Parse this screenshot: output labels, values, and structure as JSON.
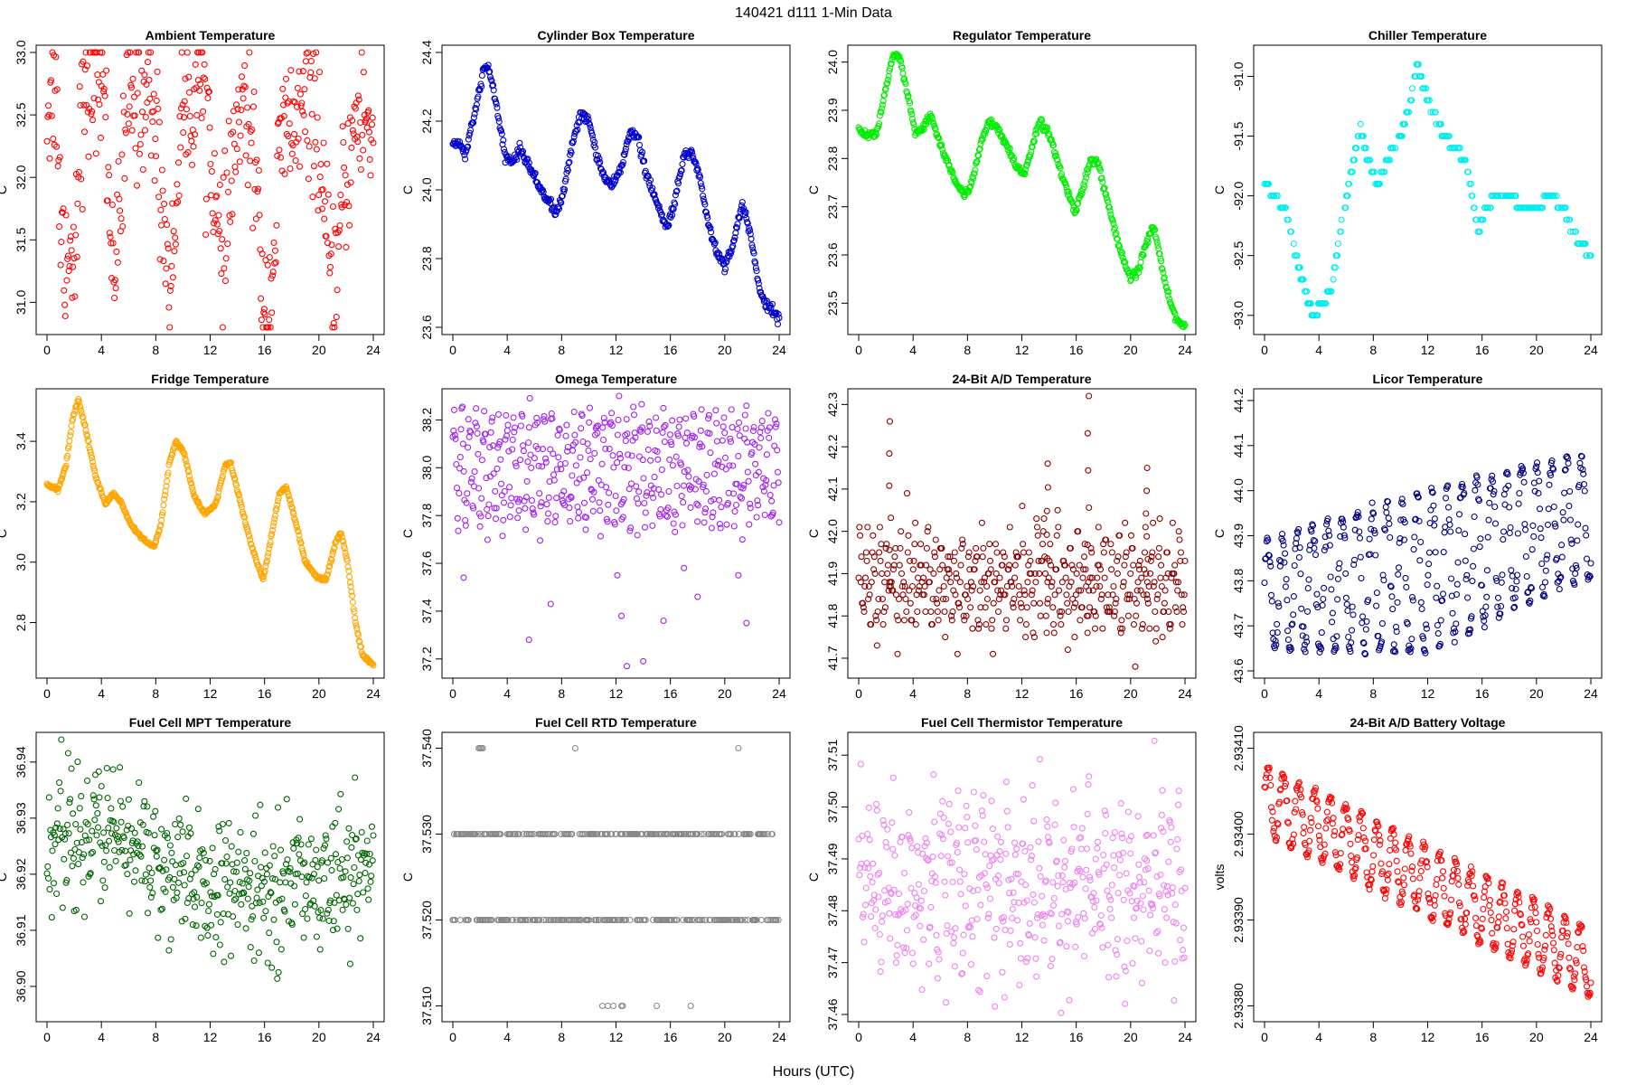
{
  "figure": {
    "title": "140421   d111   1-Min Data",
    "xlabel": "Hours (UTC)"
  },
  "chart_data": [
    {
      "type": "scatter",
      "title": "Ambient Temperature",
      "ylabel": "C",
      "color": "#ff0000",
      "ylim": [
        30.8,
        33.0
      ],
      "yticks": [
        "31.0",
        "31.5",
        "32.0",
        "32.5",
        "33.0"
      ],
      "xlim": [
        0,
        24
      ],
      "xticks": [
        "0",
        "4",
        "8",
        "12",
        "16",
        "20",
        "24"
      ],
      "trace": [
        [
          0.0,
          32.6
        ],
        [
          0.7,
          32.7
        ],
        [
          1.0,
          31.6
        ],
        [
          1.4,
          31.4
        ],
        [
          2.0,
          31.4
        ],
        [
          2.4,
          32.4
        ],
        [
          3.0,
          32.6
        ],
        [
          3.5,
          32.9
        ],
        [
          4.2,
          32.7
        ],
        [
          4.8,
          31.4
        ],
        [
          5.3,
          31.5
        ],
        [
          5.9,
          32.6
        ],
        [
          6.8,
          32.6
        ],
        [
          7.6,
          32.7
        ],
        [
          8.2,
          32.2
        ],
        [
          8.7,
          31.5
        ],
        [
          9.2,
          31.1
        ],
        [
          9.8,
          32.5
        ],
        [
          10.6,
          32.6
        ],
        [
          11.3,
          32.8
        ],
        [
          12.0,
          32.4
        ],
        [
          12.6,
          31.4
        ],
        [
          13.0,
          31.3
        ],
        [
          13.8,
          32.3
        ],
        [
          14.5,
          32.5
        ],
        [
          15.2,
          32.3
        ],
        [
          15.7,
          31.3
        ],
        [
          16.2,
          30.9
        ],
        [
          16.7,
          31.4
        ],
        [
          17.2,
          32.3
        ],
        [
          18.0,
          32.4
        ],
        [
          19.0,
          32.5
        ],
        [
          19.8,
          32.6
        ],
        [
          20.5,
          31.5
        ],
        [
          21.0,
          31.0
        ],
        [
          21.4,
          31.4
        ],
        [
          22.0,
          32.0
        ],
        [
          22.6,
          32.4
        ],
        [
          23.2,
          32.5
        ],
        [
          24.0,
          32.3
        ]
      ],
      "noise": 0.3,
      "density": 1.0
    },
    {
      "type": "scatter",
      "title": "Cylinder Box Temperature",
      "ylabel": "C",
      "color": "#0000cd",
      "ylim": [
        23.6,
        24.4
      ],
      "yticks": [
        "23.6",
        "23.8",
        "24.0",
        "24.2",
        "24.4"
      ],
      "xlim": [
        0,
        24
      ],
      "xticks": [
        "0",
        "4",
        "8",
        "12",
        "16",
        "20",
        "24"
      ],
      "trace": [
        [
          0.0,
          24.14
        ],
        [
          0.6,
          24.13
        ],
        [
          0.9,
          24.1
        ],
        [
          1.5,
          24.2
        ],
        [
          2.2,
          24.34
        ],
        [
          2.6,
          24.36
        ],
        [
          3.2,
          24.25
        ],
        [
          3.8,
          24.1
        ],
        [
          4.4,
          24.08
        ],
        [
          4.9,
          24.12
        ],
        [
          5.5,
          24.08
        ],
        [
          6.2,
          24.02
        ],
        [
          7.0,
          23.97
        ],
        [
          7.6,
          23.93
        ],
        [
          8.2,
          24.0
        ],
        [
          8.8,
          24.14
        ],
        [
          9.4,
          24.22
        ],
        [
          10.0,
          24.2
        ],
        [
          10.6,
          24.1
        ],
        [
          11.2,
          24.03
        ],
        [
          11.8,
          24.01
        ],
        [
          12.5,
          24.08
        ],
        [
          13.1,
          24.18
        ],
        [
          13.6,
          24.15
        ],
        [
          14.2,
          24.05
        ],
        [
          15.0,
          23.96
        ],
        [
          15.7,
          23.89
        ],
        [
          16.3,
          23.96
        ],
        [
          17.0,
          24.1
        ],
        [
          17.6,
          24.11
        ],
        [
          18.2,
          24.03
        ],
        [
          18.8,
          23.9
        ],
        [
          19.4,
          23.82
        ],
        [
          20.0,
          23.78
        ],
        [
          20.6,
          23.84
        ],
        [
          21.3,
          23.96
        ],
        [
          21.9,
          23.87
        ],
        [
          22.5,
          23.72
        ],
        [
          23.1,
          23.66
        ],
        [
          23.6,
          23.65
        ],
        [
          24.0,
          23.62
        ]
      ],
      "noise": 0.007,
      "density": 1.0
    },
    {
      "type": "scatter",
      "title": "Regulator Temperature",
      "ylabel": "C",
      "color": "#00ee00",
      "ylim": [
        23.45,
        24.02
      ],
      "yticks": [
        "23.5",
        "23.6",
        "23.7",
        "23.8",
        "23.9",
        "24.0"
      ],
      "xlim": [
        0,
        24
      ],
      "xticks": [
        "0",
        "4",
        "8",
        "12",
        "16",
        "20",
        "24"
      ],
      "trace": [
        [
          0.0,
          23.86
        ],
        [
          0.5,
          23.85
        ],
        [
          1.3,
          23.85
        ],
        [
          2.1,
          23.96
        ],
        [
          2.5,
          24.01
        ],
        [
          3.0,
          24.01
        ],
        [
          3.6,
          23.93
        ],
        [
          4.2,
          23.85
        ],
        [
          4.7,
          23.86
        ],
        [
          5.3,
          23.89
        ],
        [
          6.0,
          23.83
        ],
        [
          7.0,
          23.76
        ],
        [
          7.8,
          23.72
        ],
        [
          8.4,
          23.76
        ],
        [
          9.0,
          23.83
        ],
        [
          9.6,
          23.88
        ],
        [
          10.2,
          23.86
        ],
        [
          11.0,
          23.82
        ],
        [
          11.6,
          23.78
        ],
        [
          12.2,
          23.77
        ],
        [
          12.8,
          23.83
        ],
        [
          13.3,
          23.88
        ],
        [
          14.0,
          23.85
        ],
        [
          15.0,
          23.76
        ],
        [
          15.9,
          23.69
        ],
        [
          16.5,
          23.74
        ],
        [
          17.1,
          23.8
        ],
        [
          17.6,
          23.79
        ],
        [
          18.4,
          23.7
        ],
        [
          19.2,
          23.61
        ],
        [
          20.0,
          23.55
        ],
        [
          20.6,
          23.57
        ],
        [
          21.2,
          23.63
        ],
        [
          21.7,
          23.66
        ],
        [
          22.2,
          23.59
        ],
        [
          23.0,
          23.49
        ],
        [
          23.6,
          23.46
        ],
        [
          24.0,
          23.45
        ]
      ],
      "noise": 0.004,
      "density": 1.0
    },
    {
      "type": "scatter",
      "title": "Chiller Temperature",
      "ylabel": "C",
      "color": "#00eeee",
      "ylim": [
        -93.1,
        -90.8
      ],
      "yticks": [
        "-93.0",
        "-92.5",
        "-92.0",
        "-91.5",
        "-91.0"
      ],
      "xlim": [
        0,
        24
      ],
      "xticks": [
        "0",
        "4",
        "8",
        "12",
        "16",
        "20",
        "24"
      ],
      "trace": [
        [
          0.0,
          -91.9
        ],
        [
          0.8,
          -92.0
        ],
        [
          1.5,
          -92.1
        ],
        [
          2.3,
          -92.5
        ],
        [
          3.0,
          -92.8
        ],
        [
          3.6,
          -93.0
        ],
        [
          4.3,
          -92.9
        ],
        [
          4.9,
          -92.8
        ],
        [
          5.7,
          -92.2
        ],
        [
          6.4,
          -91.8
        ],
        [
          7.0,
          -91.4
        ],
        [
          7.6,
          -91.7
        ],
        [
          8.3,
          -91.9
        ],
        [
          9.0,
          -91.7
        ],
        [
          10.0,
          -91.5
        ],
        [
          10.8,
          -91.2
        ],
        [
          11.2,
          -90.9
        ],
        [
          11.7,
          -91.1
        ],
        [
          12.4,
          -91.3
        ],
        [
          13.2,
          -91.5
        ],
        [
          14.0,
          -91.6
        ],
        [
          14.8,
          -91.7
        ],
        [
          15.3,
          -92.0
        ],
        [
          15.7,
          -92.3
        ],
        [
          16.3,
          -92.1
        ],
        [
          17.0,
          -92.0
        ],
        [
          18.0,
          -92.0
        ],
        [
          19.0,
          -92.1
        ],
        [
          20.0,
          -92.1
        ],
        [
          21.0,
          -92.0
        ],
        [
          22.0,
          -92.1
        ],
        [
          22.6,
          -92.3
        ],
        [
          23.2,
          -92.4
        ],
        [
          24.0,
          -92.5
        ]
      ],
      "noise": 0.0,
      "quantum": 0.1,
      "density": 0.7
    },
    {
      "type": "scatter",
      "title": "Fridge Temperature",
      "ylabel": "C",
      "color": "#ffa500",
      "ylim": [
        2.64,
        3.55
      ],
      "yticks": [
        "2.8",
        "3.0",
        "3.2",
        "3.4"
      ],
      "xlim": [
        0,
        24
      ],
      "xticks": [
        "0",
        "4",
        "8",
        "12",
        "16",
        "20",
        "24"
      ],
      "trace": [
        [
          0.0,
          3.26
        ],
        [
          0.8,
          3.24
        ],
        [
          1.4,
          3.32
        ],
        [
          1.9,
          3.48
        ],
        [
          2.3,
          3.54
        ],
        [
          2.8,
          3.45
        ],
        [
          3.6,
          3.28
        ],
        [
          4.3,
          3.19
        ],
        [
          4.9,
          3.23
        ],
        [
          5.4,
          3.2
        ],
        [
          6.2,
          3.12
        ],
        [
          7.2,
          3.07
        ],
        [
          7.9,
          3.05
        ],
        [
          8.4,
          3.13
        ],
        [
          9.0,
          3.33
        ],
        [
          9.5,
          3.4
        ],
        [
          10.1,
          3.36
        ],
        [
          10.8,
          3.22
        ],
        [
          11.6,
          3.16
        ],
        [
          12.4,
          3.19
        ],
        [
          13.1,
          3.32
        ],
        [
          13.5,
          3.33
        ],
        [
          14.1,
          3.22
        ],
        [
          15.0,
          3.06
        ],
        [
          15.9,
          2.94
        ],
        [
          16.4,
          3.06
        ],
        [
          17.1,
          3.23
        ],
        [
          17.6,
          3.25
        ],
        [
          18.3,
          3.13
        ],
        [
          19.0,
          3.0
        ],
        [
          19.8,
          2.95
        ],
        [
          20.5,
          2.94
        ],
        [
          21.2,
          3.06
        ],
        [
          21.6,
          3.1
        ],
        [
          22.1,
          3.0
        ],
        [
          22.7,
          2.8
        ],
        [
          23.2,
          2.69
        ],
        [
          24.0,
          2.66
        ]
      ],
      "noise": 0.003,
      "density": 1.0
    },
    {
      "type": "scatter",
      "title": "Omega Temperature",
      "ylabel": "C",
      "color": "#a020f0",
      "ylim": [
        37.15,
        38.3
      ],
      "yticks": [
        "37.2",
        "37.4",
        "37.6",
        "37.8",
        "38.0",
        "38.2"
      ],
      "xlim": [
        0,
        24
      ],
      "xticks": [
        "0",
        "4",
        "8",
        "12",
        "16",
        "20",
        "24"
      ],
      "center": 38.0,
      "amplitude": 0.2,
      "period": 0.55,
      "noise": 0.05,
      "density": 1.0,
      "outliers": [
        [
          0.8,
          37.54
        ],
        [
          5.6,
          37.28
        ],
        [
          7.2,
          37.43
        ],
        [
          12.1,
          37.55
        ],
        [
          12.4,
          37.38
        ],
        [
          12.8,
          37.17
        ],
        [
          14.0,
          37.19
        ],
        [
          15.5,
          37.36
        ],
        [
          17.0,
          37.58
        ],
        [
          18.0,
          37.46
        ],
        [
          21.0,
          37.55
        ],
        [
          21.6,
          37.35
        ]
      ]
    },
    {
      "type": "scatter",
      "title": "24-Bit A/D Temperature",
      "ylabel": "C",
      "color": "#8b0000",
      "ylim": [
        41.67,
        42.32
      ],
      "yticks": [
        "41.7",
        "41.8",
        "41.9",
        "42.0",
        "42.1",
        "42.2",
        "42.3"
      ],
      "xlim": [
        0,
        24
      ],
      "xticks": [
        "0",
        "4",
        "8",
        "12",
        "16",
        "20",
        "24"
      ],
      "center": 41.88,
      "amplitude": 0.08,
      "period": 0.5,
      "noise": 0.04,
      "quantum": 0.01,
      "density": 1.0,
      "spikes": [
        [
          2.3,
          42.26
        ],
        [
          16.9,
          42.32
        ],
        [
          21.2,
          42.15
        ],
        [
          13.9,
          42.16
        ]
      ]
    },
    {
      "type": "scatter",
      "title": "Licor Temperature",
      "ylabel": "C",
      "color": "#000080",
      "ylim": [
        43.6,
        44.21
      ],
      "yticks": [
        "43.6",
        "43.7",
        "43.8",
        "43.9",
        "44.0",
        "44.1",
        "44.2"
      ],
      "xlim": [
        0,
        24
      ],
      "xticks": [
        "0",
        "4",
        "8",
        "12",
        "16",
        "20",
        "24"
      ],
      "center_trend": [
        [
          0,
          43.77
        ],
        [
          12,
          43.82
        ],
        [
          24,
          43.95
        ]
      ],
      "amplitude_trend": [
        [
          0,
          0.12
        ],
        [
          12,
          0.18
        ],
        [
          24,
          0.14
        ]
      ],
      "period": 1.1,
      "noise": 0.005,
      "density": 1.0
    },
    {
      "type": "scatter",
      "title": "Fuel Cell MPT Temperature",
      "ylabel": "C",
      "color": "#006400",
      "ylim": [
        36.895,
        36.944
      ],
      "yticks": [
        "36.90",
        "36.91",
        "36.92",
        "36.93",
        "36.94"
      ],
      "xlim": [
        0,
        24
      ],
      "xticks": [
        "0",
        "4",
        "8",
        "12",
        "16",
        "20",
        "24"
      ],
      "trace": [
        [
          0,
          36.926
        ],
        [
          5,
          36.927
        ],
        [
          8,
          36.923
        ],
        [
          10,
          36.918
        ],
        [
          13,
          36.917
        ],
        [
          16,
          36.917
        ],
        [
          20,
          36.92
        ],
        [
          24,
          36.921
        ]
      ],
      "noise": 0.006,
      "density": 1.0
    },
    {
      "type": "scatter",
      "title": "Fuel Cell RTD Temperature",
      "ylabel": "C",
      "color": "#888888",
      "ylim": [
        37.509,
        37.541
      ],
      "yticks": [
        "37.510",
        "37.520",
        "37.530",
        "37.540"
      ],
      "xlim": [
        0,
        24
      ],
      "xticks": [
        "0",
        "4",
        "8",
        "12",
        "16",
        "20",
        "24"
      ],
      "levels": [
        37.52,
        37.53
      ],
      "outliers": [
        [
          1.9,
          37.54
        ],
        [
          2.0,
          37.54
        ],
        [
          2.1,
          37.54
        ],
        [
          2.2,
          37.54
        ],
        [
          9.0,
          37.54
        ],
        [
          21.0,
          37.54
        ],
        [
          11.0,
          37.51
        ],
        [
          11.4,
          37.51
        ],
        [
          11.8,
          37.51
        ],
        [
          12.4,
          37.51
        ],
        [
          12.5,
          37.51
        ],
        [
          15.0,
          37.51
        ],
        [
          17.5,
          37.51
        ]
      ]
    },
    {
      "type": "scatter",
      "title": "Fuel Cell Thermistor Temperature",
      "ylabel": "C",
      "color": "#ee82ee",
      "ylim": [
        37.46,
        37.513
      ],
      "yticks": [
        "37.46",
        "37.47",
        "37.48",
        "37.49",
        "37.50",
        "37.51"
      ],
      "xlim": [
        0,
        24
      ],
      "xticks": [
        "0",
        "4",
        "8",
        "12",
        "16",
        "20",
        "24"
      ],
      "center": 37.485,
      "amplitude": 0.01,
      "period": 0.6,
      "noise": 0.006,
      "density": 1.0
    },
    {
      "type": "scatter",
      "title": "24-Bit A/D Battery Voltage",
      "ylabel": "volts",
      "color": "#ff0000",
      "ylim": [
        2.93379,
        2.93411
      ],
      "yticks": [
        "2.93380",
        "2.93390",
        "2.93400",
        "2.93410"
      ],
      "xlim": [
        0,
        24
      ],
      "xticks": [
        "0",
        "4",
        "8",
        "12",
        "16",
        "20",
        "24"
      ],
      "center_trend": [
        [
          0,
          2.93404
        ],
        [
          24,
          2.93385
        ]
      ],
      "amplitude_trend": [
        [
          0,
          4e-05
        ],
        [
          24,
          4e-05
        ]
      ],
      "period": 1.15,
      "noise": 2e-06,
      "density": 1.0
    }
  ]
}
